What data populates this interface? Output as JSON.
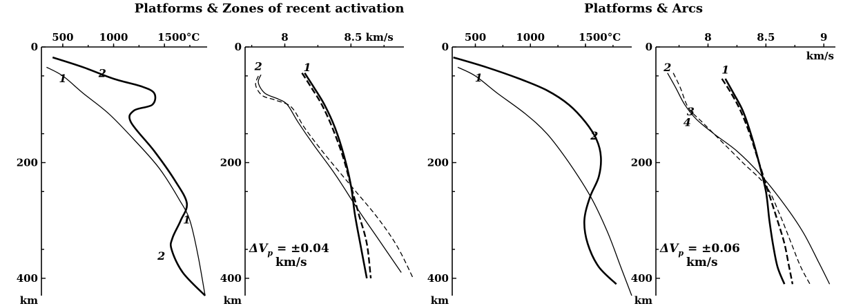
{
  "titles": {
    "left": "Platforms & Zones of recent activation",
    "right": "Platforms & Arcs"
  },
  "chart_data": [
    {
      "type": "line",
      "id": "temp-activation",
      "x_label": "°C",
      "x_ticks": [
        "500",
        "1000",
        "1500°C"
      ],
      "x_tick_values": [
        500,
        1000,
        1500
      ],
      "xlim": [
        290,
        1920
      ],
      "y_ticks": [
        "0",
        "200",
        "400"
      ],
      "y_tick_values": [
        0,
        200,
        400
      ],
      "y_unit": "km",
      "ylim": [
        0,
        430
      ],
      "y_inverted": true,
      "series": [
        {
          "name": "1",
          "style": "thin",
          "x": [
            340,
            500,
            700,
            950,
            1200,
            1450,
            1650,
            1750,
            1830,
            1900
          ],
          "y": [
            35,
            50,
            80,
            115,
            160,
            210,
            265,
            300,
            360,
            430
          ]
        },
        {
          "name": "2",
          "style": "thick",
          "x": [
            400,
            700,
            1000,
            1270,
            1400,
            1380,
            1200,
            1170,
            1400,
            1600,
            1720,
            1660,
            1580,
            1570,
            1680,
            1900
          ],
          "y": [
            18,
            35,
            55,
            68,
            80,
            100,
            110,
            130,
            180,
            230,
            270,
            300,
            330,
            350,
            390,
            430
          ]
        }
      ],
      "curve_labels": [
        {
          "text": "1",
          "x": 500,
          "y": 61
        },
        {
          "text": "2",
          "x": 890,
          "y": 52
        },
        {
          "text": "1",
          "x": 1720,
          "y": 305
        },
        {
          "text": "2",
          "x": 1470,
          "y": 368
        }
      ]
    },
    {
      "type": "line",
      "id": "vp-activation",
      "x_label": "km/s",
      "x_ticks": [
        "8",
        "8.5 km/s"
      ],
      "x_tick_values": [
        8.0,
        8.5
      ],
      "xlim": [
        7.7,
        8.9
      ],
      "y_ticks": [
        "0",
        "200",
        "400"
      ],
      "y_tick_values": [
        0,
        200,
        400
      ],
      "y_unit": "km",
      "ylim": [
        0,
        430
      ],
      "y_inverted": true,
      "series": [
        {
          "name": "1",
          "style": "thick",
          "x": [
            8.15,
            8.22,
            8.3,
            8.38,
            8.45,
            8.5,
            8.53,
            8.57,
            8.62
          ],
          "y": [
            45,
            70,
            100,
            140,
            190,
            240,
            290,
            340,
            400
          ]
        },
        {
          "name": "1-model",
          "style": "dash-thick",
          "x": [
            8.13,
            8.2,
            8.28,
            8.36,
            8.44,
            8.5,
            8.56,
            8.62,
            8.65
          ],
          "y": [
            45,
            70,
            100,
            140,
            190,
            240,
            290,
            340,
            400
          ]
        },
        {
          "name": "2",
          "style": "thin",
          "x": [
            7.82,
            7.8,
            7.85,
            7.95,
            8.02,
            8.1,
            8.22,
            8.38,
            8.55,
            8.7,
            8.88
          ],
          "y": [
            48,
            62,
            80,
            90,
            100,
            130,
            170,
            220,
            280,
            330,
            390
          ]
        },
        {
          "name": "2-model",
          "style": "dash",
          "x": [
            7.8,
            7.78,
            7.83,
            7.93,
            8.05,
            8.15,
            8.3,
            8.5,
            8.7,
            8.85,
            8.97
          ],
          "y": [
            50,
            66,
            84,
            92,
            104,
            140,
            185,
            240,
            295,
            345,
            400
          ]
        }
      ],
      "curve_labels": [
        {
          "text": "2",
          "x": 7.8,
          "y": 40
        },
        {
          "text": "1",
          "x": 8.17,
          "y": 42
        }
      ],
      "annotation": {
        "prefix": "ΔV",
        "sub": "p",
        "value": " = ±0.04",
        "unit": "km/s"
      }
    },
    {
      "type": "line",
      "id": "temp-arcs",
      "x_label": "°C",
      "x_ticks": [
        "500",
        "1000",
        "1500°C"
      ],
      "x_tick_values": [
        500,
        1000,
        1500
      ],
      "xlim": [
        290,
        1920
      ],
      "y_ticks": [
        "0",
        "200",
        "400"
      ],
      "y_tick_values": [
        0,
        200,
        400
      ],
      "y_unit": "km",
      "ylim": [
        0,
        430
      ],
      "y_inverted": true,
      "series": [
        {
          "name": "1",
          "style": "thin",
          "x": [
            340,
            500,
            700,
            950,
            1150,
            1350,
            1550,
            1700,
            1820,
            1920
          ],
          "y": [
            35,
            50,
            80,
            115,
            150,
            200,
            260,
            320,
            380,
            430
          ]
        },
        {
          "name": "2",
          "style": "thick",
          "x": [
            300,
            600,
            900,
            1150,
            1350,
            1500,
            1600,
            1640,
            1620,
            1540,
            1490,
            1520,
            1620,
            1780
          ],
          "y": [
            18,
            35,
            55,
            75,
            100,
            130,
            160,
            190,
            225,
            260,
            300,
            340,
            380,
            410
          ]
        }
      ],
      "curve_labels": [
        {
          "text": "1",
          "x": 530,
          "y": 60
        },
        {
          "text": "2",
          "x": 1580,
          "y": 160
        }
      ]
    },
    {
      "type": "line",
      "id": "vp-arcs",
      "x_label": "km/s",
      "x_ticks": [
        "8",
        "8.5",
        "9"
      ],
      "x_tick_values": [
        8.0,
        8.5,
        9.0
      ],
      "xlim": [
        7.55,
        9.1
      ],
      "y_ticks": [
        "0",
        "200",
        "400"
      ],
      "y_tick_values": [
        0,
        200,
        400
      ],
      "y_unit": "km",
      "ylim": [
        0,
        430
      ],
      "y_inverted": true,
      "series": [
        {
          "name": "1",
          "style": "thick",
          "x": [
            8.15,
            8.22,
            8.3,
            8.37,
            8.44,
            8.5,
            8.53,
            8.56,
            8.6,
            8.66
          ],
          "y": [
            55,
            80,
            110,
            150,
            200,
            250,
            300,
            340,
            380,
            410
          ]
        },
        {
          "name": "1-model",
          "style": "dash-thick",
          "x": [
            8.12,
            8.2,
            8.28,
            8.36,
            8.44,
            8.52,
            8.6,
            8.66,
            8.7,
            8.73
          ],
          "y": [
            55,
            80,
            110,
            150,
            200,
            250,
            300,
            340,
            380,
            410
          ]
        },
        {
          "name": "3",
          "style": "thin",
          "x": [
            7.65,
            7.72,
            7.8,
            7.9,
            8.05,
            8.25,
            8.45,
            8.65,
            8.82,
            8.95,
            9.05
          ],
          "y": [
            45,
            70,
            100,
            125,
            150,
            180,
            220,
            270,
            320,
            370,
            410
          ]
        },
        {
          "name": "4",
          "style": "dash",
          "x": [
            7.7,
            7.76,
            7.83,
            7.95,
            8.1,
            8.3,
            8.5,
            8.62,
            8.72,
            8.8,
            8.88
          ],
          "y": [
            45,
            70,
            105,
            130,
            160,
            200,
            240,
            290,
            340,
            380,
            410
          ]
        }
      ],
      "curve_labels": [
        {
          "text": "2",
          "x": 7.65,
          "y": 42
        },
        {
          "text": "1",
          "x": 8.15,
          "y": 46
        },
        {
          "text": "3",
          "x": 7.85,
          "y": 118
        },
        {
          "text": "4",
          "x": 7.82,
          "y": 137
        }
      ],
      "right_unit": "km/s",
      "annotation": {
        "prefix": "ΔV",
        "sub": "p",
        "value": " = ±0.06",
        "unit": "km/s"
      }
    }
  ]
}
